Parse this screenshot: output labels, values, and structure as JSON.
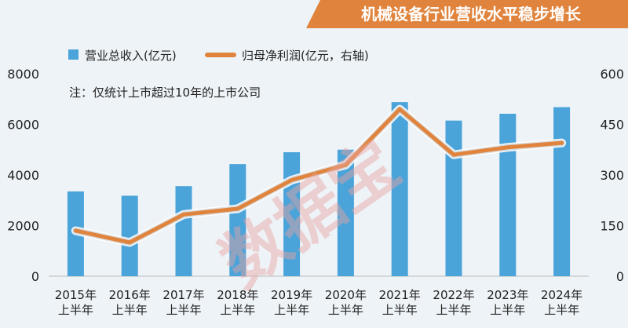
{
  "chart_data": {
    "type": "bar+line",
    "title": "机械设备行业营收水平稳步增长",
    "note": "注：仅统计上市超过10年的上市公司",
    "watermark": "数据宝",
    "categories": [
      "2015年上半年",
      "2016年上半年",
      "2017年上半年",
      "2018年上半年",
      "2019年上半年",
      "2020年上半年",
      "2021年上半年",
      "2022年上半年",
      "2023年上半年",
      "2024年上半年"
    ],
    "category_lines": [
      [
        "2015年",
        "上半年"
      ],
      [
        "2016年",
        "上半年"
      ],
      [
        "2017年",
        "上半年"
      ],
      [
        "2018年",
        "上半年"
      ],
      [
        "2019年",
        "上半年"
      ],
      [
        "2020年",
        "上半年"
      ],
      [
        "2021年",
        "上半年"
      ],
      [
        "2022年",
        "上半年"
      ],
      [
        "2023年",
        "上半年"
      ],
      [
        "2024年",
        "上半年"
      ]
    ],
    "series": [
      {
        "name": "营业总收入(亿元)",
        "type": "bar",
        "axis": "left",
        "color": "#4aa3d9",
        "values": [
          3350,
          3180,
          3560,
          4430,
          4900,
          5000,
          6880,
          6150,
          6420,
          6680
        ]
      },
      {
        "name": "归母净利润(亿元，右轴)",
        "type": "line",
        "axis": "right",
        "color": "#e0843d",
        "values": [
          135,
          100,
          183,
          200,
          285,
          330,
          495,
          360,
          382,
          395
        ]
      }
    ],
    "y_left": {
      "min": 0,
      "max": 8000,
      "ticks": [
        "0",
        "2000",
        "4000",
        "6000",
        "8000"
      ]
    },
    "y_right": {
      "min": 0,
      "max": 600,
      "ticks": [
        "0",
        "150",
        "300",
        "450",
        "600"
      ]
    },
    "grid": false,
    "legend_position": "top-left"
  },
  "colors": {
    "background": "#eef3f7",
    "title_bg": "#e0843d",
    "bar": "#4aa3d9",
    "line": "#e0843d"
  }
}
